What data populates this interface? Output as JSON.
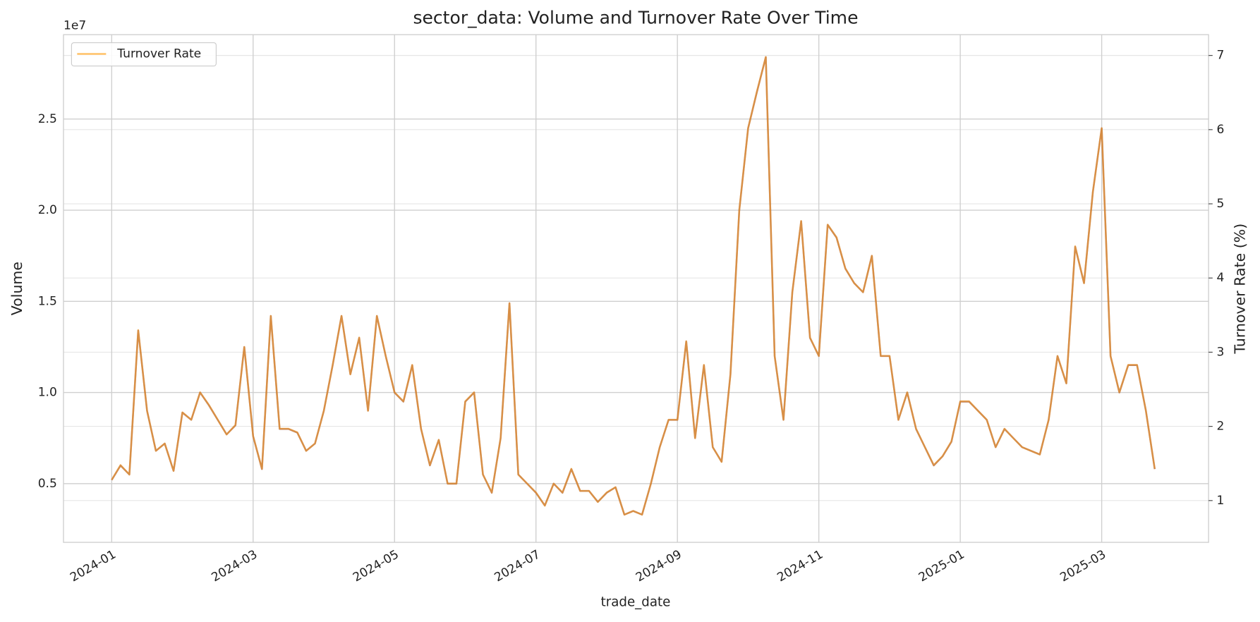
{
  "chart_data": {
    "type": "line",
    "title": "sector_data: Volume and Turnover Rate Over Time",
    "x_label": "trade_date",
    "y_label": "Volume",
    "y2_label": "Turnover Rate (%)",
    "y_offset_text": "1e7",
    "categories": [
      "2024-01",
      null,
      null,
      null,
      null,
      null,
      null,
      null,
      null,
      null,
      null,
      null,
      null,
      null,
      null,
      null,
      "2024-03",
      null,
      null,
      null,
      null,
      null,
      null,
      null,
      null,
      null,
      null,
      null,
      null,
      null,
      null,
      null,
      "2024-05",
      null,
      null,
      null,
      null,
      null,
      null,
      null,
      null,
      null,
      null,
      null,
      null,
      null,
      null,
      null,
      "2024-07",
      null,
      null,
      null,
      null,
      null,
      null,
      null,
      null,
      null,
      null,
      null,
      null,
      null,
      null,
      null,
      "2024-09",
      null,
      null,
      null,
      null,
      null,
      null,
      null,
      null,
      null,
      null,
      null,
      null,
      null,
      null,
      null,
      "2024-11",
      null,
      null,
      null,
      null,
      null,
      null,
      null,
      null,
      null,
      null,
      null,
      null,
      null,
      null,
      null,
      "2025-01",
      null,
      null,
      null,
      null,
      null,
      null,
      null,
      null,
      null,
      null,
      null,
      null,
      null,
      null,
      null,
      "2025-03",
      null,
      null,
      null,
      null,
      null,
      null
    ],
    "series": [
      {
        "color": "#a0522d",
        "values": [
          5200000,
          6000000,
          5500000,
          13400000,
          9000000,
          6800000,
          7200000,
          5700000,
          8900000,
          8500000,
          10000000,
          9300000,
          8500000,
          7700000,
          8200000,
          12500000,
          7600000,
          5800000,
          14200000,
          8000000,
          8000000,
          7800000,
          6800000,
          7200000,
          9000000,
          11500000,
          14200000,
          11000000,
          13000000,
          9000000,
          14200000,
          12000000,
          10000000,
          9500000,
          11500000,
          8000000,
          6000000,
          7400000,
          5000000,
          5000000,
          9500000,
          10000000,
          5500000,
          4500000,
          7500000,
          14900000,
          5500000,
          5000000,
          4500000,
          3800000,
          5000000,
          4500000,
          5800000,
          4600000,
          4600000,
          4000000,
          4500000,
          4800000,
          3300000,
          3500000,
          3300000,
          5000000,
          7000000,
          8500000,
          8500000,
          12800000,
          7500000,
          11500000,
          7000000,
          6200000,
          11000000,
          20000000,
          24500000,
          26500000,
          28400000,
          12000000,
          8500000,
          15500000,
          19400000,
          13000000,
          12000000,
          19200000,
          18500000,
          16800000,
          16000000,
          15500000,
          17500000,
          12000000,
          12000000,
          8500000,
          10000000,
          8000000,
          7000000,
          6000000,
          6500000,
          7300000,
          9500000,
          9500000,
          9000000,
          8500000,
          7000000,
          8000000,
          7500000,
          7000000,
          6800000,
          6600000,
          8500000,
          12000000,
          10500000,
          18000000,
          16000000,
          21000000,
          24500000,
          12000000,
          10000000,
          11500000,
          11500000,
          9000000,
          5800000
        ]
      },
      {
        "name": "Turnover Rate",
        "color": "#ffa726",
        "axis": "y2",
        "values": [
          1.28,
          1.48,
          1.35,
          3.3,
          2.21,
          1.67,
          1.77,
          1.4,
          2.19,
          2.09,
          2.46,
          2.29,
          2.09,
          1.89,
          2.02,
          3.07,
          1.87,
          1.43,
          3.49,
          1.97,
          1.97,
          1.92,
          1.67,
          1.77,
          2.21,
          2.83,
          3.49,
          2.7,
          3.2,
          2.21,
          3.49,
          2.95,
          2.46,
          2.34,
          2.83,
          1.97,
          1.48,
          1.82,
          1.23,
          1.23,
          2.34,
          2.46,
          1.35,
          1.11,
          1.84,
          3.66,
          1.35,
          1.23,
          1.11,
          0.93,
          1.23,
          1.11,
          1.43,
          1.13,
          1.13,
          0.98,
          1.11,
          1.18,
          0.81,
          0.86,
          0.81,
          1.23,
          1.72,
          2.09,
          2.09,
          3.15,
          1.84,
          2.83,
          1.72,
          1.52,
          2.7,
          4.92,
          6.02,
          6.52,
          6.98,
          2.95,
          2.09,
          3.81,
          4.77,
          3.2,
          2.95,
          4.72,
          4.55,
          4.13,
          3.93,
          3.81,
          4.3,
          2.95,
          2.95,
          2.09,
          2.46,
          1.97,
          1.72,
          1.48,
          1.6,
          1.8,
          2.34,
          2.34,
          2.21,
          2.09,
          1.72,
          1.97,
          1.84,
          1.72,
          1.67,
          1.62,
          2.09,
          2.95,
          2.58,
          4.43,
          3.93,
          5.16,
          6.02,
          2.95,
          2.46,
          2.83,
          2.83,
          2.21,
          1.43
        ]
      }
    ],
    "ylim": [
      1780000,
      29630000
    ],
    "yticks": [
      {
        "value": 5000000,
        "label": "0.5"
      },
      {
        "value": 10000000,
        "label": "1.0"
      },
      {
        "value": 15000000,
        "label": "1.5"
      },
      {
        "value": 20000000,
        "label": "2.0"
      },
      {
        "value": 25000000,
        "label": "2.5"
      }
    ],
    "y2lim": [
      0.437,
      7.28
    ],
    "y2ticks": [
      1,
      2,
      3,
      4,
      5,
      6,
      7
    ],
    "grid": true,
    "legend": "upper left"
  }
}
